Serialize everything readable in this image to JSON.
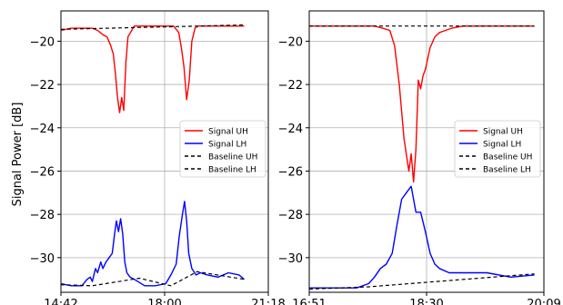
{
  "figure": {
    "ylabel": "Signal Power [dB]"
  },
  "chart_data": [
    {
      "type": "line",
      "title": "",
      "xlabel": "",
      "ylabel": "Signal Power [dB]",
      "x_ticks": [
        "14:42",
        "18:00",
        "21:18"
      ],
      "y_ticks": [
        "−20",
        "−22",
        "−24",
        "−26",
        "−28",
        "−30"
      ],
      "xlim": [
        0,
        396
      ],
      "ylim": [
        -31.6,
        -18.6
      ],
      "grid": true,
      "legend_placement": "center-right",
      "series": [
        {
          "name": "Signal UH",
          "color": "#ff0000",
          "dash": "",
          "x": [
            0,
            20,
            40,
            60,
            70,
            80,
            88,
            95,
            100,
            104,
            108,
            112,
            116,
            120,
            124,
            128,
            140,
            160,
            180,
            200,
            215,
            225,
            230,
            235,
            240,
            245,
            250,
            256,
            262,
            270,
            300,
            330,
            350
          ],
          "y": [
            -19.5,
            -19.4,
            -19.4,
            -19.4,
            -19.5,
            -19.7,
            -19.8,
            -20.2,
            -20.6,
            -21.5,
            -22.6,
            -23.3,
            -22.6,
            -23.2,
            -21.0,
            -19.8,
            -19.3,
            -19.3,
            -19.3,
            -19.3,
            -19.3,
            -19.6,
            -20.3,
            -21.2,
            -22.7,
            -21.8,
            -20.0,
            -19.4,
            -19.3,
            -19.3,
            -19.3,
            -19.3,
            -19.3
          ]
        },
        {
          "name": "Signal LH",
          "color": "#0000ff",
          "dash": "",
          "x": [
            0,
            20,
            40,
            50,
            56,
            60,
            66,
            70,
            76,
            80,
            86,
            92,
            98,
            102,
            106,
            110,
            114,
            118,
            122,
            126,
            132,
            140,
            160,
            180,
            200,
            210,
            220,
            226,
            232,
            236,
            240,
            244,
            250,
            258,
            266,
            280,
            300,
            320,
            340,
            350
          ],
          "y": [
            -31.2,
            -31.3,
            -31.3,
            -31.0,
            -30.9,
            -31.1,
            -30.5,
            -30.7,
            -30.2,
            -30.5,
            -30.2,
            -30.0,
            -29.8,
            -29.0,
            -28.3,
            -28.8,
            -28.2,
            -28.9,
            -30.2,
            -30.7,
            -30.9,
            -31.0,
            -31.3,
            -31.3,
            -31.2,
            -30.8,
            -30.3,
            -29.0,
            -28.0,
            -27.4,
            -28.3,
            -29.8,
            -30.5,
            -30.8,
            -30.7,
            -30.8,
            -30.9,
            -30.7,
            -30.8,
            -31.0
          ]
        },
        {
          "name": "Baseline UH",
          "color": "#000000",
          "dash": "4,3",
          "x": [
            0,
            350
          ],
          "y": [
            -19.45,
            -19.25
          ]
        },
        {
          "name": "Baseline LH",
          "color": "#000000",
          "dash": "4,3",
          "x": [
            0,
            60,
            150,
            210,
            260,
            350
          ],
          "y": [
            -31.25,
            -31.3,
            -30.95,
            -31.3,
            -30.65,
            -31.0
          ]
        }
      ]
    },
    {
      "type": "line",
      "title": "",
      "xlabel": "",
      "ylabel": "",
      "x_ticks": [
        "16:51",
        "18:30",
        "20:09"
      ],
      "y_ticks": [
        "−20",
        "−22",
        "−24",
        "−26",
        "−28",
        "−30"
      ],
      "xlim": [
        0,
        198
      ],
      "ylim": [
        -31.6,
        -18.6
      ],
      "grid": true,
      "legend_placement": "center-right",
      "series": [
        {
          "name": "Signal UH",
          "color": "#ff0000",
          "dash": "",
          "x": [
            0,
            20,
            40,
            55,
            62,
            68,
            72,
            76,
            80,
            84,
            86,
            88,
            90,
            92,
            94,
            96,
            98,
            102,
            106,
            110,
            115,
            120,
            130,
            150,
            170,
            190
          ],
          "y": [
            -19.3,
            -19.3,
            -19.3,
            -19.3,
            -19.4,
            -19.5,
            -20.2,
            -22.0,
            -24.5,
            -26.0,
            -25.2,
            -26.5,
            -25.0,
            -21.8,
            -22.2,
            -21.6,
            -21.3,
            -20.3,
            -19.8,
            -19.6,
            -19.5,
            -19.4,
            -19.3,
            -19.3,
            -19.3,
            -19.3
          ]
        },
        {
          "name": "Signal LH",
          "color": "#0000ff",
          "dash": "",
          "x": [
            0,
            20,
            40,
            50,
            55,
            60,
            65,
            70,
            74,
            78,
            82,
            86,
            90,
            94,
            98,
            102,
            106,
            110,
            118,
            130,
            150,
            170,
            190
          ],
          "y": [
            -31.4,
            -31.4,
            -31.4,
            -31.2,
            -30.9,
            -30.5,
            -30.3,
            -29.8,
            -28.5,
            -27.3,
            -27.0,
            -26.7,
            -27.9,
            -27.9,
            -28.8,
            -29.8,
            -30.3,
            -30.5,
            -30.7,
            -30.7,
            -30.7,
            -30.9,
            -30.8
          ]
        },
        {
          "name": "Baseline UH",
          "color": "#000000",
          "dash": "4,3",
          "x": [
            0,
            190
          ],
          "y": [
            -19.3,
            -19.3
          ]
        },
        {
          "name": "Baseline LH",
          "color": "#000000",
          "dash": "4,3",
          "x": [
            0,
            50,
            190
          ],
          "y": [
            -31.45,
            -31.35,
            -30.75
          ]
        }
      ]
    }
  ]
}
